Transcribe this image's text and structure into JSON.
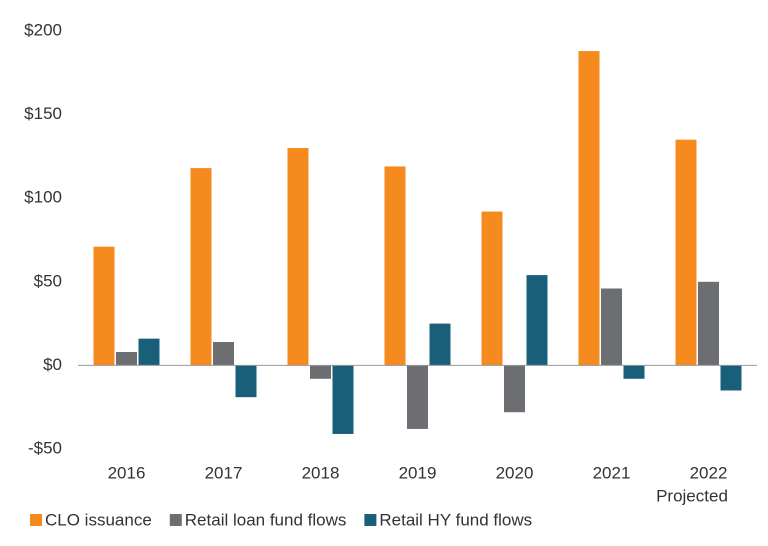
{
  "chart_data": {
    "type": "bar",
    "categories": [
      "2016",
      "2017",
      "2018",
      "2019",
      "2020",
      "2021",
      "2022"
    ],
    "category_note": "Projected",
    "series": [
      {
        "name": "CLO issuance",
        "color": "#f58a1f",
        "values": [
          71,
          118,
          130,
          119,
          92,
          188,
          135
        ]
      },
      {
        "name": "Retail loan fund flows",
        "color": "#6d6e71",
        "values": [
          8,
          14,
          -8,
          -38,
          -28,
          46,
          50
        ]
      },
      {
        "name": "Retail HY fund flows",
        "color": "#1a5f7a",
        "values": [
          16,
          -19,
          -41,
          25,
          54,
          -8,
          -15
        ]
      }
    ],
    "ylim": [
      -50,
      200
    ],
    "yticks": [
      {
        "value": -50,
        "label": "-$50"
      },
      {
        "value": 0,
        "label": "$0"
      },
      {
        "value": 50,
        "label": "$50"
      },
      {
        "value": 100,
        "label": "$100"
      },
      {
        "value": 150,
        "label": "$150"
      },
      {
        "value": 200,
        "label": "$200"
      }
    ],
    "grid": false
  }
}
